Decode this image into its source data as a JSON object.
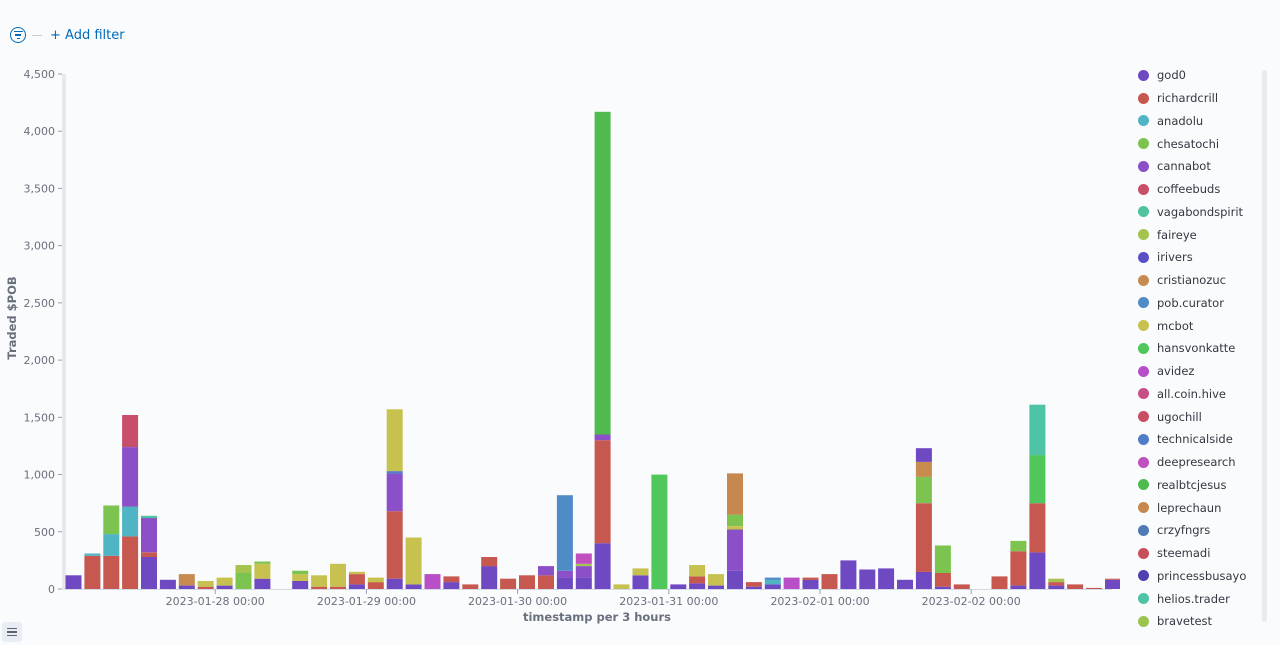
{
  "filter": {
    "add_label": "+ Add filter"
  },
  "chart_data": {
    "type": "bar",
    "stacked": true,
    "xlabel": "timestamp per 3 hours",
    "ylabel": "Traded $POB",
    "ylim": [
      0,
      4500
    ],
    "yticks": [
      0,
      500,
      1000,
      1500,
      2000,
      2500,
      3000,
      3500,
      4000,
      4500
    ],
    "xtick_labels": [
      "2023-01-28 00:00",
      "2023-01-29 00:00",
      "2023-01-30 00:00",
      "2023-01-31 00:00",
      "2023-02-01 00:00",
      "2023-02-02 00:00"
    ],
    "x_start": "2023-01-27 03:00",
    "x_step_hours": 3,
    "legend_position": "right",
    "series": [
      {
        "name": "god0",
        "color": "#6f49c2"
      },
      {
        "name": "richardcrill",
        "color": "#c7584f"
      },
      {
        "name": "anadolu",
        "color": "#4fb4c3"
      },
      {
        "name": "chesatochi",
        "color": "#7cc34f"
      },
      {
        "name": "cannabot",
        "color": "#8b4fc7"
      },
      {
        "name": "coffeebuds",
        "color": "#c74f6a"
      },
      {
        "name": "vagabondspirit",
        "color": "#4fc3a0"
      },
      {
        "name": "faireye",
        "color": "#a4c34f"
      },
      {
        "name": "irivers",
        "color": "#5b4fc7"
      },
      {
        "name": "cristianozuc",
        "color": "#c78b4f"
      },
      {
        "name": "pob.curator",
        "color": "#4f8bc7"
      },
      {
        "name": "mcbot",
        "color": "#c7c24f"
      },
      {
        "name": "hansvonkatte",
        "color": "#4fc75a"
      },
      {
        "name": "avidez",
        "color": "#b84fc7"
      },
      {
        "name": "all.coin.hive",
        "color": "#c74f86"
      },
      {
        "name": "ugochill",
        "color": "#c74f64"
      },
      {
        "name": "technicalside",
        "color": "#4f7dc7"
      },
      {
        "name": "deepresearch",
        "color": "#c04fc0"
      },
      {
        "name": "realbtcjesus",
        "color": "#4fbb4f"
      },
      {
        "name": "leprechaun",
        "color": "#c7884f"
      },
      {
        "name": "crzyfngrs",
        "color": "#4f7ab5"
      },
      {
        "name": "steemadi",
        "color": "#c74f5a"
      },
      {
        "name": "princessbusayo",
        "color": "#5040b0"
      },
      {
        "name": "helios.trader",
        "color": "#4fc3a5"
      },
      {
        "name": "bravetest",
        "color": "#9dc34f"
      }
    ],
    "bars": [
      {
        "i": 0,
        "s": [
          [
            "god0",
            120
          ]
        ]
      },
      {
        "i": 1,
        "s": [
          [
            "richardcrill",
            290
          ],
          [
            "anadolu",
            20
          ]
        ]
      },
      {
        "i": 2,
        "s": [
          [
            "richardcrill",
            290
          ],
          [
            "anadolu",
            190
          ],
          [
            "chesatochi",
            250
          ]
        ]
      },
      {
        "i": 3,
        "s": [
          [
            "richardcrill",
            460
          ],
          [
            "anadolu",
            260
          ],
          [
            "cannabot",
            520
          ],
          [
            "coffeebuds",
            280
          ]
        ]
      },
      {
        "i": 4,
        "s": [
          [
            "god0",
            280
          ],
          [
            "richardcrill",
            40
          ],
          [
            "cannabot",
            300
          ],
          [
            "vagabondspirit",
            20
          ]
        ]
      },
      {
        "i": 5,
        "s": [
          [
            "god0",
            80
          ]
        ]
      },
      {
        "i": 6,
        "s": [
          [
            "god0",
            30
          ],
          [
            "cristianozuc",
            100
          ]
        ]
      },
      {
        "i": 7,
        "s": [
          [
            "richardcrill",
            20
          ],
          [
            "mcbot",
            50
          ]
        ]
      },
      {
        "i": 8,
        "s": [
          [
            "god0",
            30
          ],
          [
            "mcbot",
            70
          ]
        ]
      },
      {
        "i": 9,
        "s": [
          [
            "chesatochi",
            140
          ],
          [
            "faireye",
            70
          ]
        ]
      },
      {
        "i": 10,
        "s": [
          [
            "god0",
            90
          ],
          [
            "mcbot",
            130
          ],
          [
            "chesatochi",
            20
          ]
        ]
      },
      {
        "i": 12,
        "s": [
          [
            "god0",
            70
          ],
          [
            "mcbot",
            60
          ],
          [
            "chesatochi",
            30
          ]
        ]
      },
      {
        "i": 13,
        "s": [
          [
            "richardcrill",
            20
          ],
          [
            "mcbot",
            100
          ]
        ]
      },
      {
        "i": 14,
        "s": [
          [
            "richardcrill",
            20
          ],
          [
            "mcbot",
            200
          ]
        ]
      },
      {
        "i": 15,
        "s": [
          [
            "god0",
            40
          ],
          [
            "richardcrill",
            90
          ],
          [
            "mcbot",
            20
          ]
        ]
      },
      {
        "i": 16,
        "s": [
          [
            "richardcrill",
            60
          ],
          [
            "mcbot",
            40
          ]
        ]
      },
      {
        "i": 17,
        "s": [
          [
            "god0",
            90
          ],
          [
            "richardcrill",
            590
          ],
          [
            "cannabot",
            330
          ],
          [
            "technicalside",
            20
          ],
          [
            "mcbot",
            540
          ]
        ]
      },
      {
        "i": 18,
        "s": [
          [
            "god0",
            40
          ],
          [
            "mcbot",
            410
          ]
        ]
      },
      {
        "i": 19,
        "s": [
          [
            "avidez",
            130
          ]
        ]
      },
      {
        "i": 20,
        "s": [
          [
            "god0",
            60
          ],
          [
            "richardcrill",
            50
          ]
        ]
      },
      {
        "i": 21,
        "s": [
          [
            "richardcrill",
            40
          ]
        ]
      },
      {
        "i": 22,
        "s": [
          [
            "god0",
            200
          ],
          [
            "richardcrill",
            80
          ]
        ]
      },
      {
        "i": 23,
        "s": [
          [
            "richardcrill",
            90
          ]
        ]
      },
      {
        "i": 24,
        "s": [
          [
            "richardcrill",
            120
          ]
        ]
      },
      {
        "i": 25,
        "s": [
          [
            "richardcrill",
            120
          ],
          [
            "cannabot",
            80
          ]
        ]
      },
      {
        "i": 26,
        "s": [
          [
            "god0",
            100
          ],
          [
            "cannabot",
            60
          ],
          [
            "pob.curator",
            660
          ]
        ]
      },
      {
        "i": 27,
        "s": [
          [
            "god0",
            100
          ],
          [
            "cannabot",
            100
          ],
          [
            "faireye",
            20
          ],
          [
            "deepresearch",
            90
          ]
        ]
      },
      {
        "i": 28,
        "s": [
          [
            "god0",
            400
          ],
          [
            "richardcrill",
            900
          ],
          [
            "cannabot",
            50
          ],
          [
            "realbtcjesus",
            2820
          ]
        ]
      },
      {
        "i": 29,
        "s": [
          [
            "mcbot",
            40
          ]
        ]
      },
      {
        "i": 30,
        "s": [
          [
            "god0",
            120
          ],
          [
            "mcbot",
            60
          ]
        ]
      },
      {
        "i": 31,
        "s": [
          [
            "hansvonkatte",
            1000
          ]
        ]
      },
      {
        "i": 32,
        "s": [
          [
            "god0",
            40
          ]
        ]
      },
      {
        "i": 33,
        "s": [
          [
            "god0",
            50
          ],
          [
            "richardcrill",
            60
          ],
          [
            "mcbot",
            100
          ]
        ]
      },
      {
        "i": 34,
        "s": [
          [
            "god0",
            30
          ],
          [
            "mcbot",
            100
          ]
        ]
      },
      {
        "i": 35,
        "s": [
          [
            "god0",
            160
          ],
          [
            "cannabot",
            360
          ],
          [
            "mcbot",
            30
          ],
          [
            "chesatochi",
            100
          ],
          [
            "leprechaun",
            360
          ]
        ]
      },
      {
        "i": 36,
        "s": [
          [
            "god0",
            20
          ],
          [
            "richardcrill",
            40
          ]
        ]
      },
      {
        "i": 37,
        "s": [
          [
            "god0",
            40
          ],
          [
            "anadolu",
            40
          ],
          [
            "pob.curator",
            20
          ]
        ]
      },
      {
        "i": 38,
        "s": [
          [
            "avidez",
            100
          ]
        ]
      },
      {
        "i": 39,
        "s": [
          [
            "god0",
            80
          ],
          [
            "richardcrill",
            20
          ]
        ]
      },
      {
        "i": 40,
        "s": [
          [
            "richardcrill",
            130
          ]
        ]
      },
      {
        "i": 41,
        "s": [
          [
            "god0",
            250
          ]
        ]
      },
      {
        "i": 42,
        "s": [
          [
            "god0",
            170
          ]
        ]
      },
      {
        "i": 43,
        "s": [
          [
            "god0",
            180
          ]
        ]
      },
      {
        "i": 44,
        "s": [
          [
            "god0",
            80
          ]
        ]
      },
      {
        "i": 45,
        "s": [
          [
            "god0",
            150
          ],
          [
            "richardcrill",
            600
          ],
          [
            "chesatochi",
            230
          ],
          [
            "cristianozuc",
            130
          ],
          [
            "god0",
            120
          ]
        ]
      },
      {
        "i": 46,
        "s": [
          [
            "god0",
            20
          ],
          [
            "richardcrill",
            120
          ],
          [
            "chesatochi",
            240
          ]
        ]
      },
      {
        "i": 47,
        "s": [
          [
            "richardcrill",
            40
          ]
        ]
      },
      {
        "i": 49,
        "s": [
          [
            "richardcrill",
            110
          ]
        ]
      },
      {
        "i": 50,
        "s": [
          [
            "god0",
            30
          ],
          [
            "richardcrill",
            300
          ],
          [
            "chesatochi",
            90
          ]
        ]
      },
      {
        "i": 51,
        "s": [
          [
            "god0",
            320
          ],
          [
            "richardcrill",
            430
          ],
          [
            "hansvonkatte",
            420
          ],
          [
            "helios.trader",
            440
          ]
        ]
      },
      {
        "i": 52,
        "s": [
          [
            "god0",
            30
          ],
          [
            "richardcrill",
            30
          ],
          [
            "faireye",
            30
          ]
        ]
      },
      {
        "i": 53,
        "s": [
          [
            "richardcrill",
            40
          ]
        ]
      },
      {
        "i": 54,
        "s": [
          [
            "richardcrill",
            10
          ]
        ]
      },
      {
        "i": 55,
        "s": [
          [
            "god0",
            80
          ],
          [
            "richardcrill",
            10
          ]
        ]
      }
    ]
  }
}
